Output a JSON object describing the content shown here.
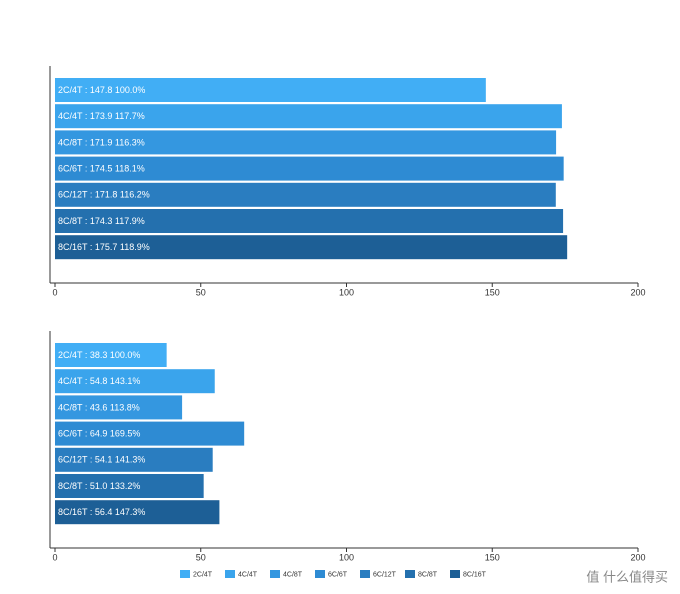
{
  "chart_data": [
    {
      "type": "hbar",
      "categories": [
        "2C/4T",
        "4C/4T",
        "4C/8T",
        "6C/6T",
        "6C/12T",
        "8C/8T",
        "8C/16T"
      ],
      "values": [
        147.8,
        173.9,
        171.9,
        174.5,
        171.8,
        174.3,
        175.7
      ],
      "value_labels": [
        "2C/4T : 147.8  100.0%",
        "4C/4T : 173.9  117.7%",
        "4C/8T : 171.9  116.3%",
        "6C/6T : 174.5  118.1%",
        "6C/12T : 171.8  116.2%",
        "8C/8T : 174.3  117.9%",
        "8C/16T : 175.7  118.9%"
      ],
      "colors": [
        "#41aef5",
        "#3aa4ec",
        "#3497e0",
        "#2e8bd3",
        "#2a7dc0",
        "#2470ae",
        "#1d5f96"
      ],
      "xlim": [
        0,
        200
      ],
      "xticks": [
        0,
        50,
        100,
        150,
        200
      ]
    },
    {
      "type": "hbar",
      "categories": [
        "2C/4T",
        "4C/4T",
        "4C/8T",
        "6C/6T",
        "6C/12T",
        "8C/8T",
        "8C/16T"
      ],
      "values": [
        38.3,
        54.8,
        43.6,
        64.9,
        54.1,
        51.0,
        56.4
      ],
      "value_labels": [
        "2C/4T : 38.3  100.0%",
        "4C/4T : 54.8  143.1%",
        "4C/8T : 43.6  113.8%",
        "6C/6T : 64.9  169.5%",
        "6C/12T : 54.1  141.3%",
        "8C/8T : 51.0  133.2%",
        "8C/16T : 56.4  147.3%"
      ],
      "colors": [
        "#41aef5",
        "#3aa4ec",
        "#3497e0",
        "#2e8bd3",
        "#2a7dc0",
        "#2470ae",
        "#1d5f96"
      ],
      "xlim": [
        0,
        200
      ],
      "xticks": [
        0,
        50,
        100,
        150,
        200
      ]
    }
  ],
  "watermark": "值 什么值得买"
}
